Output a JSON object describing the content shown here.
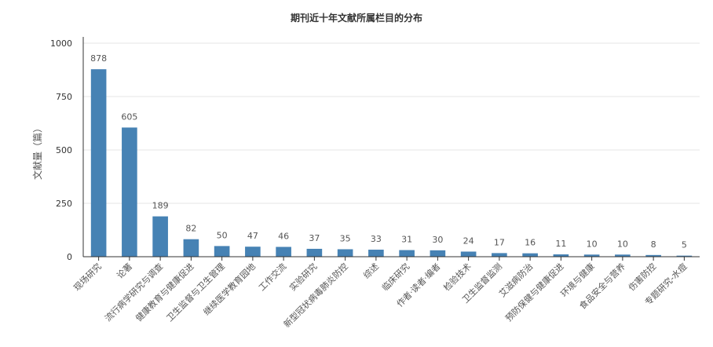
{
  "chart_data": {
    "type": "bar",
    "title": "期刊近十年文献所属栏目的分布",
    "ylabel": "文献量（篇）",
    "xlabel": "",
    "ylim": [
      0,
      1000
    ],
    "yticks": [
      0,
      250,
      500,
      750,
      1000
    ],
    "grid": true,
    "legend": "none",
    "color": "#4682b4",
    "categories": [
      "现场研究",
      "论著",
      "流行病学研究与调查",
      "健康教育与健康促进",
      "卫生监督与卫生管理",
      "继续医学教育园地",
      "工作交流",
      "实验研究",
      "新型冠状病毒肺炎防控",
      "综述",
      "临床研究",
      "作者·读者·编者",
      "检验技术",
      "卫生监督监测",
      "艾滋病防治",
      "预防保健与健康促进",
      "环境与健康",
      "食品安全与营养",
      "伤害防控",
      "专题研究-水痘"
    ],
    "values": [
      878,
      605,
      189,
      82,
      50,
      47,
      46,
      37,
      35,
      33,
      31,
      30,
      24,
      17,
      16,
      11,
      10,
      10,
      8,
      5
    ]
  }
}
